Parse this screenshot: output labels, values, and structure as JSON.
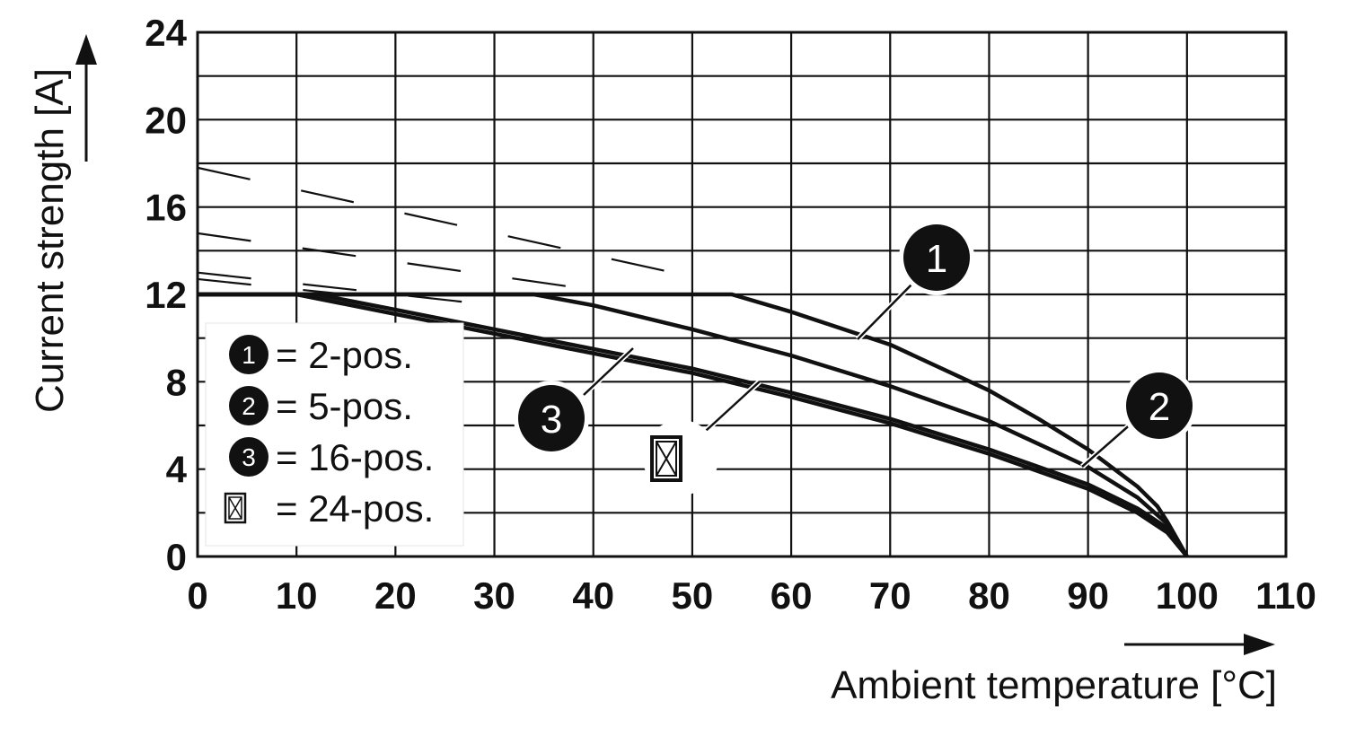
{
  "chart_data": {
    "type": "line",
    "xlabel": "Ambient temperature [°C]",
    "ylabel": "Current strength [A]",
    "xlim": [
      0,
      110
    ],
    "ylim": [
      0,
      24
    ],
    "x_ticks": [
      "0",
      "10",
      "20",
      "30",
      "40",
      "50",
      "60",
      "70",
      "80",
      "90",
      "100",
      "110"
    ],
    "y_ticks": [
      "0",
      "4",
      "8",
      "12",
      "16",
      "20",
      "24"
    ],
    "grid": true,
    "legend_position": "lower-left",
    "legend": [
      {
        "marker": "1",
        "label": "= 2-pos."
      },
      {
        "marker": "2",
        "label": "= 5-pos."
      },
      {
        "marker": "3",
        "label": "= 16-pos."
      },
      {
        "marker": "⊠",
        "label": "= 24-pos."
      }
    ],
    "series": [
      {
        "marker": "1",
        "style": "solid",
        "x": [
          0,
          54,
          60,
          70,
          80,
          85,
          90,
          95,
          97,
          98,
          99,
          100
        ],
        "y": [
          12,
          12,
          11.2,
          9.7,
          7.6,
          6.3,
          4.9,
          3.2,
          2.3,
          1.6,
          0.8,
          0
        ]
      },
      {
        "marker": "2",
        "style": "solid",
        "x": [
          0,
          34,
          40,
          50,
          60,
          70,
          80,
          90,
          95,
          98,
          100
        ],
        "y": [
          12,
          12,
          11.5,
          10.4,
          9.2,
          7.8,
          6.2,
          4.1,
          2.7,
          1.5,
          0
        ]
      },
      {
        "marker": "3",
        "style": "solid",
        "x": [
          0,
          12,
          20,
          30,
          40,
          50,
          60,
          70,
          80,
          90,
          95,
          98,
          100
        ],
        "y": [
          12,
          12,
          11.3,
          10.4,
          9.5,
          8.6,
          7.5,
          6.3,
          4.9,
          3.3,
          2.2,
          1.3,
          0
        ]
      },
      {
        "marker": "⊠",
        "style": "solid",
        "x": [
          0,
          10,
          20,
          30,
          40,
          50,
          60,
          70,
          80,
          90,
          95,
          98,
          100
        ],
        "y": [
          12,
          12,
          11.1,
          10.2,
          9.3,
          8.4,
          7.3,
          6.1,
          4.7,
          3.1,
          2.0,
          1.1,
          0
        ]
      }
    ],
    "dashed_lines": [
      {
        "x": [
          0,
          50
        ],
        "y": [
          17.8,
          12.8
        ]
      },
      {
        "x": [
          0,
          40
        ],
        "y": [
          14.8,
          12.2
        ]
      },
      {
        "x": [
          0,
          30
        ],
        "y": [
          13.0,
          11.5
        ]
      },
      {
        "x": [
          0,
          15
        ],
        "y": [
          12.7,
          12.0
        ]
      }
    ],
    "colors": {
      "line": "#111111",
      "grid": "#111111",
      "background": "#ffffff"
    }
  }
}
